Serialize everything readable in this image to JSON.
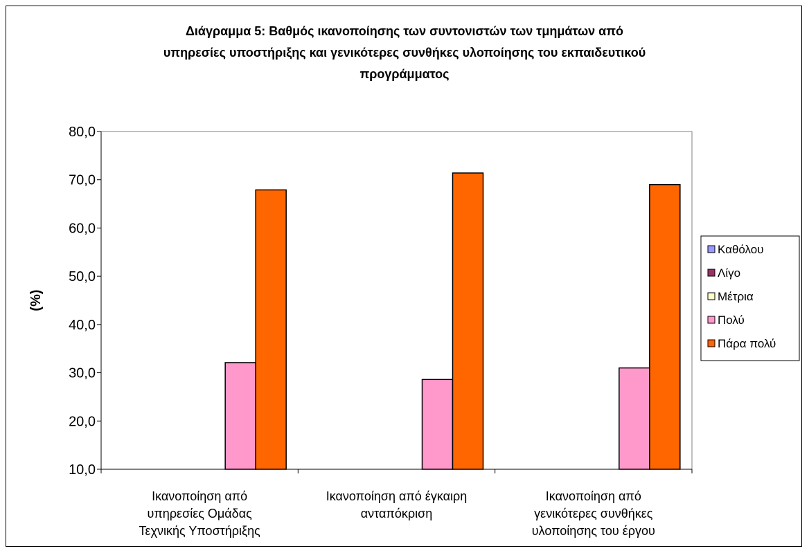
{
  "chart_data": {
    "type": "bar",
    "title_lines": [
      "Διάγραμμα 5: Βαθμός ικανοποίησης των συντονιστών των τμημάτων από",
      "υπηρεσίες υποστήριξης και γενικότερες συνθήκες υλοποίησης του εκπαιδευτικού",
      "προγράμματος"
    ],
    "ylabel": "(%)",
    "xlabel": "",
    "ylim": [
      10,
      80
    ],
    "yticks": [
      "10,0",
      "20,0",
      "30,0",
      "40,0",
      "50,0",
      "60,0",
      "70,0",
      "80,0"
    ],
    "grid": false,
    "legend_position": "right",
    "categories": [
      [
        "Ικανοποίηση από",
        "υπηρεσίες Ομάδας",
        "Τεχνικής Υποστήριξης"
      ],
      [
        "Ικανοποίηση από έγκαιρη",
        "ανταπόκριση"
      ],
      [
        "Ικανοποίηση από",
        "γενικότερες συνθήκες",
        "υλοποίησης του έργου"
      ]
    ],
    "series": [
      {
        "name": "Καθόλου",
        "color": "#9999ff",
        "values": [
          0,
          0,
          0
        ]
      },
      {
        "name": "Λίγο",
        "color": "#993366",
        "values": [
          0,
          0,
          0
        ]
      },
      {
        "name": "Μέτρια",
        "color": "#ffffcc",
        "values": [
          0,
          0,
          0
        ]
      },
      {
        "name": "Πολύ",
        "color": "#ff99cc",
        "values": [
          32.1,
          28.6,
          31.0
        ]
      },
      {
        "name": "Πάρα πολύ",
        "color": "#ff6600",
        "values": [
          67.9,
          71.4,
          69.0
        ]
      }
    ]
  }
}
